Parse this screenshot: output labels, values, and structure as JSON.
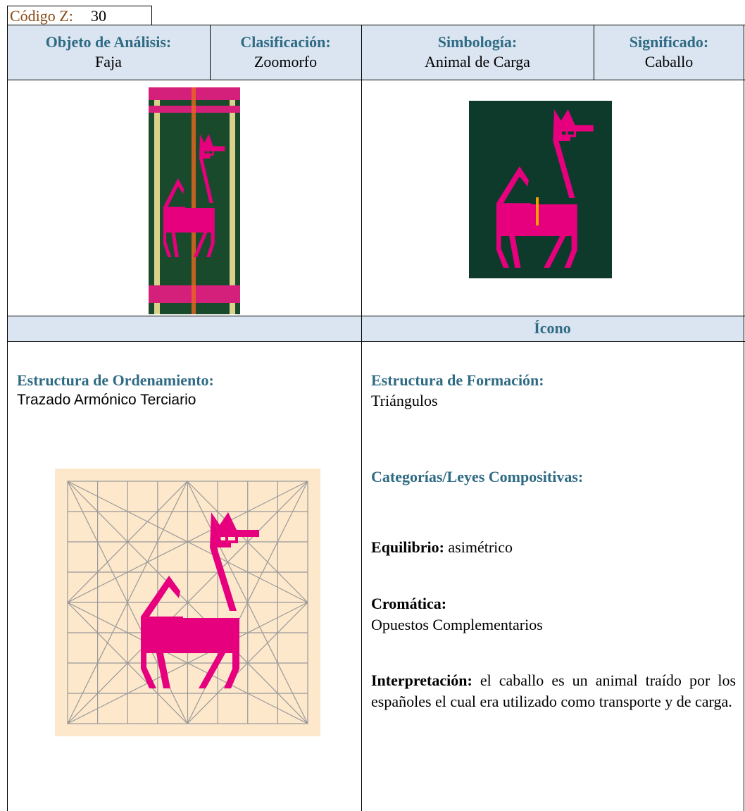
{
  "code": {
    "label": "Código Z:",
    "value": "30"
  },
  "header": [
    {
      "label": "Objeto de Análisis:",
      "value": "Faja"
    },
    {
      "label": "Clasificación:",
      "value": "Zoomorfo"
    },
    {
      "label": "Simbología:",
      "value": "Animal de Carga"
    },
    {
      "label": "Significado:",
      "value": "Caballo"
    }
  ],
  "icon_label": "Ícono",
  "left": {
    "heading": "Estructura de Ordenamiento:",
    "text": "Trazado Armónico Terciario"
  },
  "right": {
    "formation": {
      "heading": "Estructura de Formación:",
      "text": "Triángulos"
    },
    "categories_heading": "Categorías/Leyes Compositivas:",
    "balance": {
      "label": "Equilibrio:",
      "value": "asimétrico"
    },
    "chromatic": {
      "label": "Cromática:",
      "value": "Opuestos Complementarios"
    },
    "interpretation": {
      "label": "Interpretación:",
      "text": "el caballo es un animal traído por los españoles el cual era utilizado como transporte y de carga."
    }
  }
}
